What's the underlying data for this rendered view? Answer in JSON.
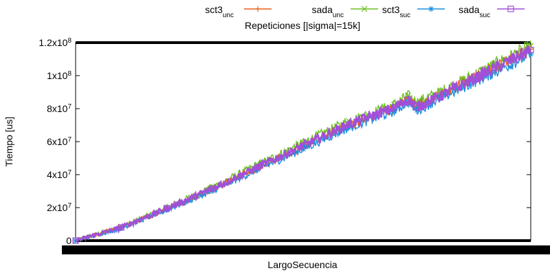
{
  "chart_data": {
    "type": "line",
    "title": "Repeticiones [|sigma|=15k]",
    "xlabel": "LargoSecuencia",
    "ylabel": "Tiempo [us]",
    "ylim": [
      0,
      120000000
    ],
    "y_ticks": [
      {
        "value": 0,
        "base": "0",
        "exp": ""
      },
      {
        "value": 20000000,
        "base": "2x10",
        "exp": "7"
      },
      {
        "value": 40000000,
        "base": "4x10",
        "exp": "7"
      },
      {
        "value": 60000000,
        "base": "6x10",
        "exp": "7"
      },
      {
        "value": 80000000,
        "base": "8x10",
        "exp": "7"
      },
      {
        "value": 100000000,
        "base": "1x10",
        "exp": "8"
      },
      {
        "value": 120000000,
        "base": "1.2x10",
        "exp": "8"
      }
    ],
    "x_tick_labels_illegible": true,
    "grid": false,
    "legend_position": "top",
    "series": [
      {
        "name": "sct3",
        "sub": "unc",
        "color": "#e8601c",
        "marker": "plus",
        "x": [
          0,
          0.1,
          0.2,
          0.3,
          0.4,
          0.5,
          0.6,
          0.7,
          0.73,
          0.75,
          0.8,
          0.9,
          1.0
        ],
        "y": [
          0,
          8000000,
          19000000,
          31000000,
          44000000,
          57000000,
          70000000,
          80000000,
          86000000,
          81000000,
          88000000,
          102000000,
          116000000
        ]
      },
      {
        "name": "sada",
        "sub": "unc",
        "color": "#6bbf1f",
        "marker": "x",
        "x": [
          0,
          0.1,
          0.2,
          0.3,
          0.4,
          0.5,
          0.6,
          0.7,
          0.73,
          0.75,
          0.8,
          0.9,
          1.0
        ],
        "y": [
          0,
          8500000,
          20000000,
          32500000,
          46000000,
          59500000,
          72500000,
          82500000,
          88000000,
          84000000,
          90000000,
          104000000,
          118000000
        ]
      },
      {
        "name": "sct3",
        "sub": "suc",
        "color": "#1a8fe0",
        "marker": "star",
        "x": [
          0,
          0.1,
          0.2,
          0.3,
          0.4,
          0.5,
          0.6,
          0.7,
          0.73,
          0.75,
          0.8,
          0.9,
          1.0
        ],
        "y": [
          0,
          7500000,
          18500000,
          30000000,
          43000000,
          55500000,
          68500000,
          78500000,
          84000000,
          79000000,
          86000000,
          99500000,
          113000000
        ]
      },
      {
        "name": "sada",
        "sub": "suc",
        "color": "#a24fd8",
        "marker": "square",
        "x": [
          0,
          0.1,
          0.2,
          0.3,
          0.4,
          0.5,
          0.6,
          0.7,
          0.73,
          0.75,
          0.8,
          0.9,
          1.0
        ],
        "y": [
          0,
          8000000,
          19500000,
          31500000,
          44500000,
          57500000,
          70500000,
          80500000,
          85500000,
          81000000,
          87500000,
          101500000,
          115500000
        ]
      }
    ]
  }
}
